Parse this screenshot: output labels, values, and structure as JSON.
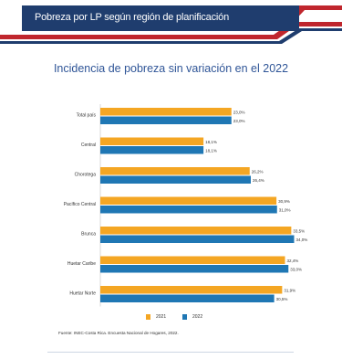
{
  "header": {
    "title": "Pobreza por LP según región de planificación"
  },
  "colors": {
    "header_bg": "#1f3d6e",
    "accent_red": "#c0262d",
    "series_2021": "#f4a623",
    "series_2022": "#1f77b4"
  },
  "chart_data": {
    "type": "bar",
    "orientation": "horizontal",
    "title": "Incidencia de pobreza sin variación en el 2022",
    "categories": [
      "Total país",
      "Central",
      "Chorotega",
      "Pacífico Central",
      "Brunca",
      "Huetar Caribe",
      "Huetar Norte"
    ],
    "series": [
      {
        "name": "2021",
        "color": "#f4a623",
        "values": [
          23.0,
          18.1,
          26.2,
          30.9,
          33.5,
          32.4,
          31.9
        ],
        "labels": [
          "23,0%",
          "18,1%",
          "26,2%",
          "30,9%",
          "33,5%",
          "32,4%",
          "31,9%"
        ]
      },
      {
        "name": "2022",
        "color": "#1f77b4",
        "values": [
          23.0,
          18.1,
          26.4,
          31.0,
          34.0,
          33.0,
          30.5
        ],
        "labels": [
          "23,0%",
          "18,1%",
          "26,4%",
          "31,0%",
          "34,0%",
          "33,0%",
          "30,5%"
        ]
      }
    ],
    "xlim": [
      0,
      40
    ],
    "legend_position": "bottom",
    "grid": false
  },
  "source": "Fuente: INEC-Costa Rica. Encuesta Nacional de Hogares, 2022."
}
